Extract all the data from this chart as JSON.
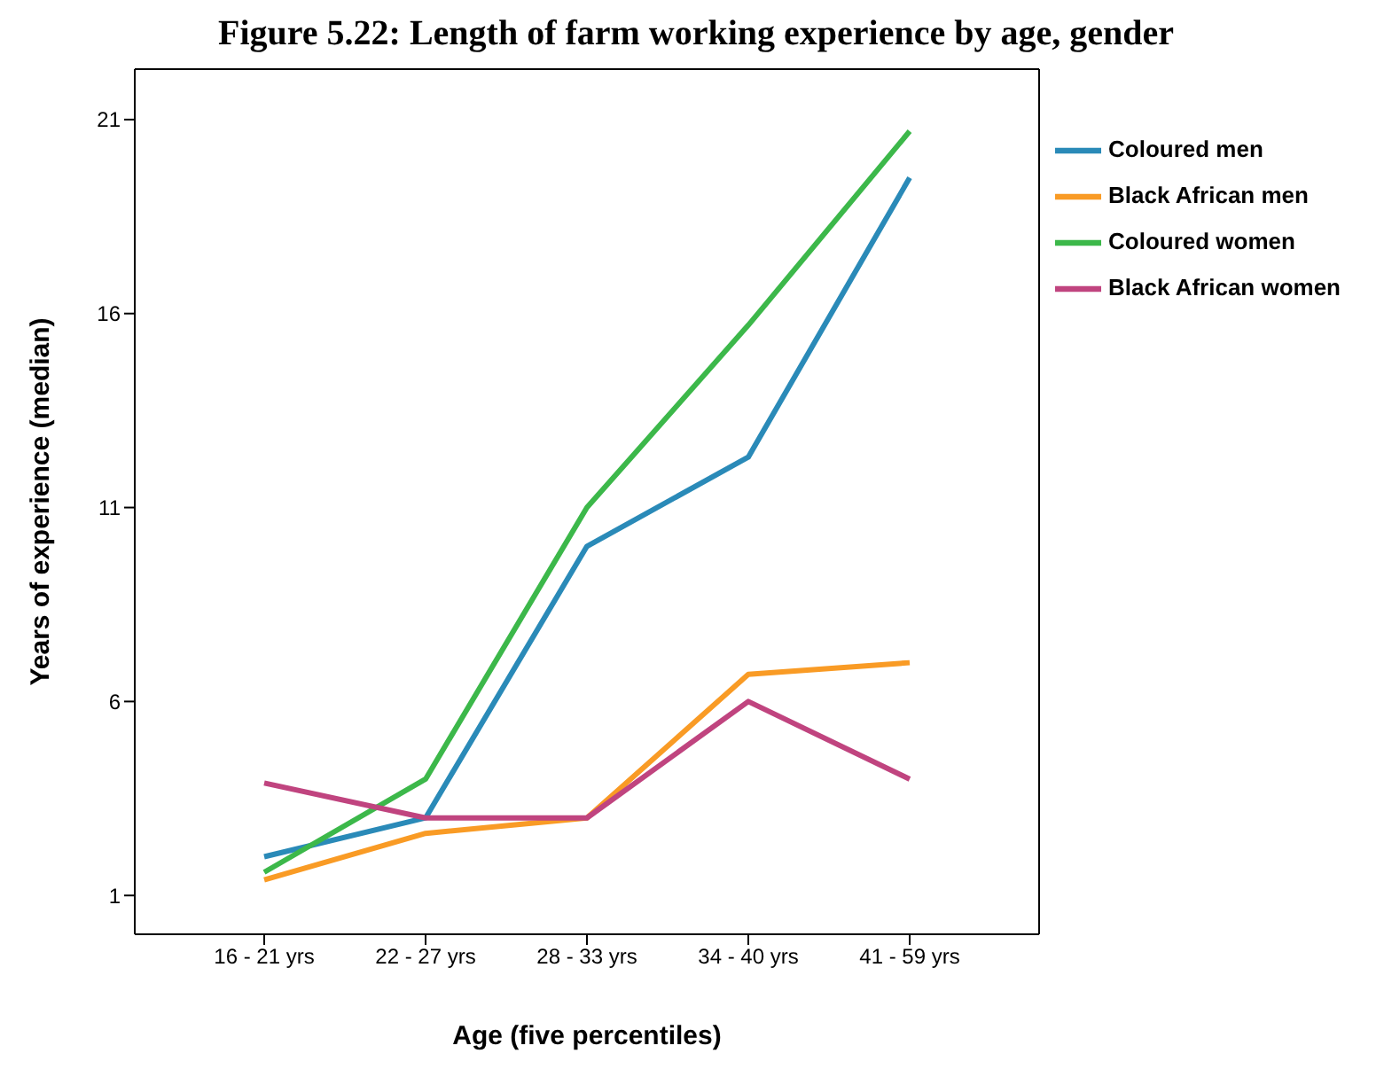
{
  "chart_data": {
    "type": "line",
    "title": "Figure 5.22: Length of farm working experience by age, gender",
    "xlabel": "Age (five percentiles)",
    "ylabel": "Years of experience (median)",
    "categories": [
      "16 - 21 yrs",
      "22 - 27 yrs",
      "28 - 33 yrs",
      "34 - 40 yrs",
      "41 - 59 yrs"
    ],
    "series": [
      {
        "name": "Coloured men",
        "color": "#2a8ab8",
        "values": [
          2.0,
          3.0,
          10.0,
          12.3,
          19.5
        ]
      },
      {
        "name": "Black African men",
        "color": "#f99b25",
        "values": [
          1.4,
          2.6,
          3.0,
          6.7,
          7.0
        ]
      },
      {
        "name": "Coloured women",
        "color": "#3cb84a",
        "values": [
          1.6,
          4.0,
          11.0,
          15.7,
          20.7
        ]
      },
      {
        "name": "Black African women",
        "color": "#c0447f",
        "values": [
          3.9,
          3.0,
          3.0,
          6.0,
          4.0
        ]
      }
    ],
    "ylim": [
      0,
      22.3
    ],
    "yticks": [
      1,
      6,
      11,
      16,
      21
    ],
    "legend": "top right",
    "marker": "none",
    "line_style": "solid"
  }
}
